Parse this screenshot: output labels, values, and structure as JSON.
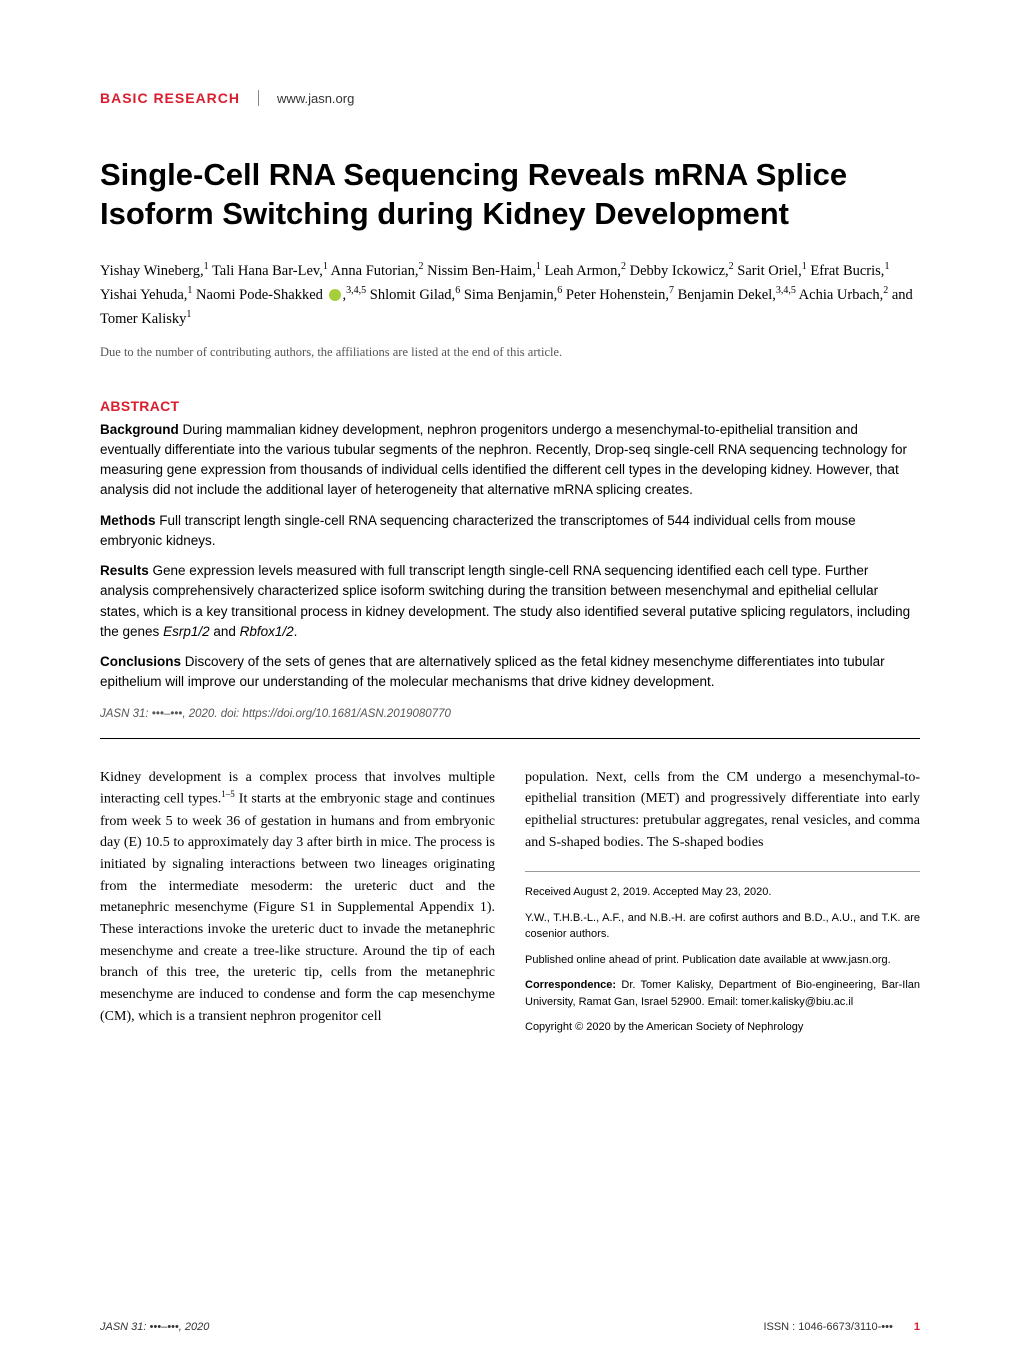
{
  "header": {
    "category": "BASIC RESEARCH",
    "website": "www.jasn.org"
  },
  "title": "Single-Cell RNA Sequencing Reveals mRNA Splice Isoform Switching during Kidney Development",
  "authors_html": "Yishay Wineberg,<sup>1</sup> Tali Hana Bar-Lev,<sup>1</sup> Anna Futorian,<sup>2</sup> Nissim Ben-Haim,<sup>1</sup> Leah Armon,<sup>2</sup> Debby Ickowicz,<sup>2</sup> Sarit Oriel,<sup>1</sup> Efrat Bucris,<sup>1</sup> Yishai Yehuda,<sup>1</sup> Naomi Pode-Shakked <span class='orcid-icon'></span>,<sup>3,4,5</sup> Shlomit Gilad,<sup>6</sup> Sima Benjamin,<sup>6</sup> Peter Hohenstein,<sup>7</sup> Benjamin Dekel,<sup>3,4,5</sup> Achia Urbach,<sup>2</sup> and Tomer Kalisky<sup>1</sup>",
  "affiliations_note": "Due to the number of contributing authors, the affiliations are listed at the end of this article.",
  "abstract": {
    "heading": "ABSTRACT",
    "background": "<strong>Background</strong> During mammalian kidney development, nephron progenitors undergo a mesenchymal-to-epithelial transition and eventually differentiate into the various tubular segments of the nephron. Recently, Drop-seq single-cell RNA sequencing technology for measuring gene expression from thousands of individual cells identified the different cell types in the developing kidney. However, that analysis did not include the additional layer of heterogeneity that alternative mRNA splicing creates.",
    "methods": "<strong>Methods</strong> Full transcript length single-cell RNA sequencing characterized the transcriptomes of 544 individual cells from mouse embryonic kidneys.",
    "results": "<strong>Results</strong> Gene expression levels measured with full transcript length single-cell RNA sequencing identified each cell type. Further analysis comprehensively characterized splice isoform switching during the transition between mesenchymal and epithelial cellular states, which is a key transitional process in kidney development. The study also identified several putative splicing regulators, including the genes <em>Esrp1/2</em> and <em>Rbfox1/2</em>.",
    "conclusions": "<strong>Conclusions</strong> Discovery of the sets of genes that are alternatively spliced as the fetal kidney mesenchyme differentiates into tubular epithelium will improve our understanding of the molecular mechanisms that drive kidney development."
  },
  "citation": "JASN 31: •••–•••, 2020. doi: https://doi.org/10.1681/ASN.2019080770",
  "body": {
    "left": "Kidney development is a complex process that involves multiple interacting cell types.<sup>1–5</sup> It starts at the embryonic stage and continues from week 5 to week 36 of gestation in humans and from embryonic day (E) 10.5 to approximately day 3 after birth in mice. The process is initiated by signaling interactions between two lineages originating from the intermediate mesoderm: the ureteric duct and the metanephric mesenchyme (Figure S1 in Supplemental Appendix 1). These interactions invoke the ureteric duct to invade the metanephric mesenchyme and create a tree-like structure. Around the tip of each branch of this tree, the ureteric tip, cells from the metanephric mesenchyme are induced to condense and form the cap mesenchyme (CM), which is a transient nephron progenitor cell",
    "right_para": "population. Next, cells from the CM undergo a mesenchymal-to-epithelial transition (MET) and progressively differentiate into early epithelial structures: pretubular aggregates, renal vesicles, and comma and S-shaped bodies. The S-shaped bodies"
  },
  "meta": {
    "received": "Received August 2, 2019. Accepted May 23, 2020.",
    "cofirst": "Y.W., T.H.B.-L., A.F., and N.B.-H. are cofirst authors and B.D., A.U., and T.K. are cosenior authors.",
    "published": "Published online ahead of print. Publication date available at www.jasn.org.",
    "correspondence": "<strong>Correspondence:</strong> Dr. Tomer Kalisky, Department of Bio-engineering, Bar-Ilan University, Ramat Gan, Israel 52900. Email: tomer.kalisky@biu.ac.il",
    "copyright": "Copyright © 2020 by the American Society of Nephrology"
  },
  "footer": {
    "left": "JASN 31: •••–•••, 2020",
    "issn": "ISSN : 1046-6673/3110-•••",
    "page": "1"
  },
  "colors": {
    "accent": "#d91e2e",
    "text": "#000000",
    "meta_text": "#555555",
    "background": "#ffffff",
    "orcid": "#a6ce39"
  }
}
